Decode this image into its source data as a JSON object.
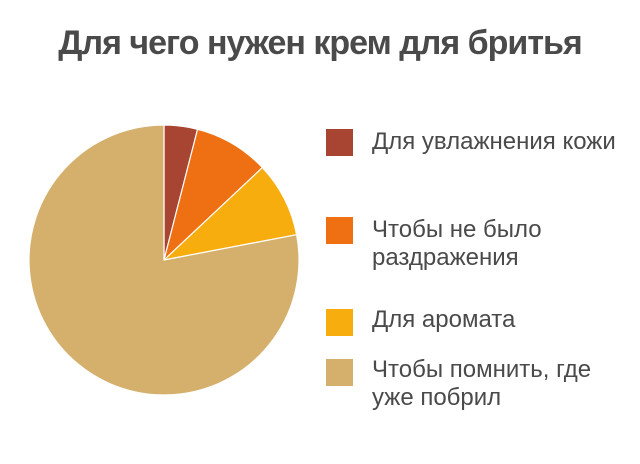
{
  "chart_data": {
    "type": "pie",
    "title": "Для чего нужен крем для бритья",
    "series": [
      {
        "name": "",
        "labels": [
          "Для увлажнения кожи",
          "Чтобы не было раздражения",
          "Для аромата",
          "Чтобы помнить, где уже побрил"
        ],
        "values": [
          4,
          9,
          9,
          78
        ]
      }
    ],
    "colors": [
      "#a84432",
      "#ee7012",
      "#f8ad0e",
      "#d5b06c"
    ],
    "start_angle_deg": 0,
    "direction": "clockwise",
    "legend_placement": "right"
  }
}
